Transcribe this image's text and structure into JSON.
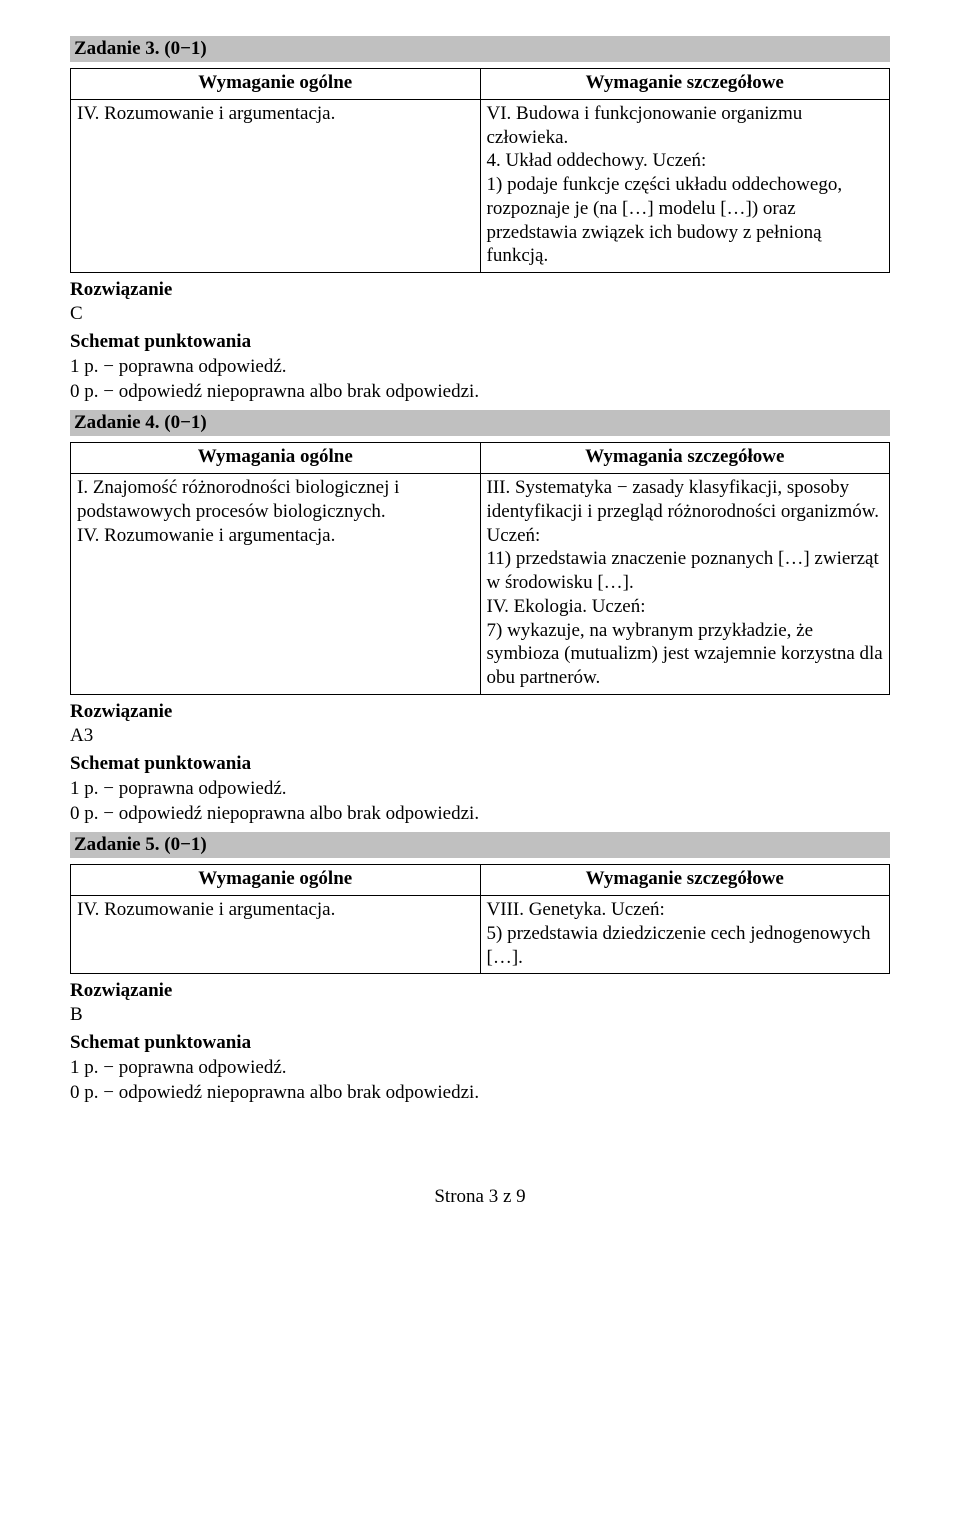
{
  "task3": {
    "header": "Zadanie 3. (0−1)",
    "table": {
      "left_header": "Wymaganie ogólne",
      "right_header": "Wymaganie szczegółowe",
      "left_body": "IV. Rozumowanie i argumentacja.",
      "right_body": "VI. Budowa i funkcjonowanie organizmu człowieka.\n4. Układ oddechowy. Uczeń:\n1) podaje funkcje części układu oddechowego, rozpoznaje je (na […] modelu […]) oraz przedstawia związek ich budowy z pełnioną funkcją."
    },
    "solution_label": "Rozwiązanie",
    "solution_value": "C",
    "scheme_label": "Schemat punktowania",
    "scheme1": "1 p. − poprawna odpowiedź.",
    "scheme0": "0 p. − odpowiedź niepoprawna albo brak odpowiedzi."
  },
  "task4": {
    "header": "Zadanie 4. (0−1)",
    "table": {
      "left_header": "Wymagania ogólne",
      "right_header": "Wymagania szczegółowe",
      "left_body": "I. Znajomość różnorodności biologicznej i podstawowych procesów biologicznych.\nIV. Rozumowanie i argumentacja.",
      "right_body": "III. Systematyka − zasady klasyfikacji, sposoby identyfikacji i przegląd różnorodności organizmów. Uczeń:\n11) przedstawia znaczenie poznanych […] zwierząt w środowisku […].\nIV. Ekologia. Uczeń:\n7) wykazuje, na wybranym przykładzie, że symbioza (mutualizm) jest wzajemnie korzystna dla obu partnerów."
    },
    "solution_label": "Rozwiązanie",
    "solution_value": "A3",
    "scheme_label": "Schemat punktowania",
    "scheme1": "1 p. − poprawna odpowiedź.",
    "scheme0": "0 p. − odpowiedź niepoprawna albo brak odpowiedzi."
  },
  "task5": {
    "header": "Zadanie 5. (0−1)",
    "table": {
      "left_header": "Wymaganie ogólne",
      "right_header": "Wymaganie szczegółowe",
      "left_body": "IV. Rozumowanie i argumentacja.",
      "right_body": "VIII. Genetyka. Uczeń:\n5) przedstawia dziedziczenie cech jednogenowych […]."
    },
    "solution_label": "Rozwiązanie",
    "solution_value": "B",
    "scheme_label": "Schemat punktowania",
    "scheme1": "1 p. − poprawna odpowiedź.",
    "scheme0": "0 p. − odpowiedź niepoprawna albo brak odpowiedzi."
  },
  "footer": "Strona 3 z 9",
  "colors": {
    "header_bg": "#c0c0c0",
    "text": "#000000",
    "border": "#000000",
    "page_bg": "#ffffff"
  },
  "typography": {
    "font_family": "Times New Roman",
    "font_size_pt": 14
  }
}
